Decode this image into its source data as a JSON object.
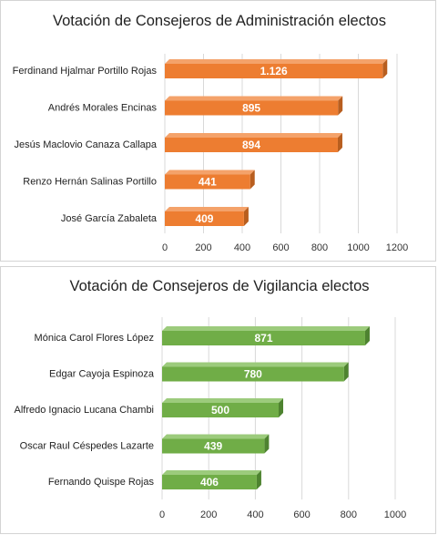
{
  "chart_data": [
    {
      "type": "bar",
      "orientation": "horizontal",
      "title": "Votación de Consejeros de Administración electos",
      "categories": [
        "Ferdinand Hjalmar Portillo Rojas",
        "Andrés Morales Encinas",
        "Jesús Maclovio Canaza Callapa",
        "Renzo Hernán Salinas Portillo",
        "José García Zabaleta"
      ],
      "values": [
        1126,
        895,
        894,
        441,
        409
      ],
      "value_labels": [
        "1.126",
        "895",
        "894",
        "441",
        "409"
      ],
      "xlim": [
        0,
        1200
      ],
      "x_ticks": [
        "0",
        "200",
        "400",
        "600",
        "800",
        "1000",
        "1200"
      ],
      "grid": true,
      "color": "#ED7D31",
      "color_top": "#F4A26A",
      "color_side": "#B85E1F"
    },
    {
      "type": "bar",
      "orientation": "horizontal",
      "title": "Votación de Consejeros de Vigilancia electos",
      "categories": [
        "Mónica Carol Flores López",
        "Edgar Cayoja Espinoza",
        "Alfredo Ignacio Lucana Chambi",
        "Oscar Raul Céspedes Lazarte",
        "Fernando Quispe Rojas"
      ],
      "values": [
        871,
        780,
        500,
        439,
        406
      ],
      "value_labels": [
        "871",
        "780",
        "500",
        "439",
        "406"
      ],
      "xlim": [
        0,
        1000
      ],
      "x_ticks": [
        "0",
        "200",
        "400",
        "600",
        "800",
        "1000"
      ],
      "grid": true,
      "color": "#70AD47",
      "color_top": "#9CCB7C",
      "color_side": "#4E8330"
    }
  ]
}
